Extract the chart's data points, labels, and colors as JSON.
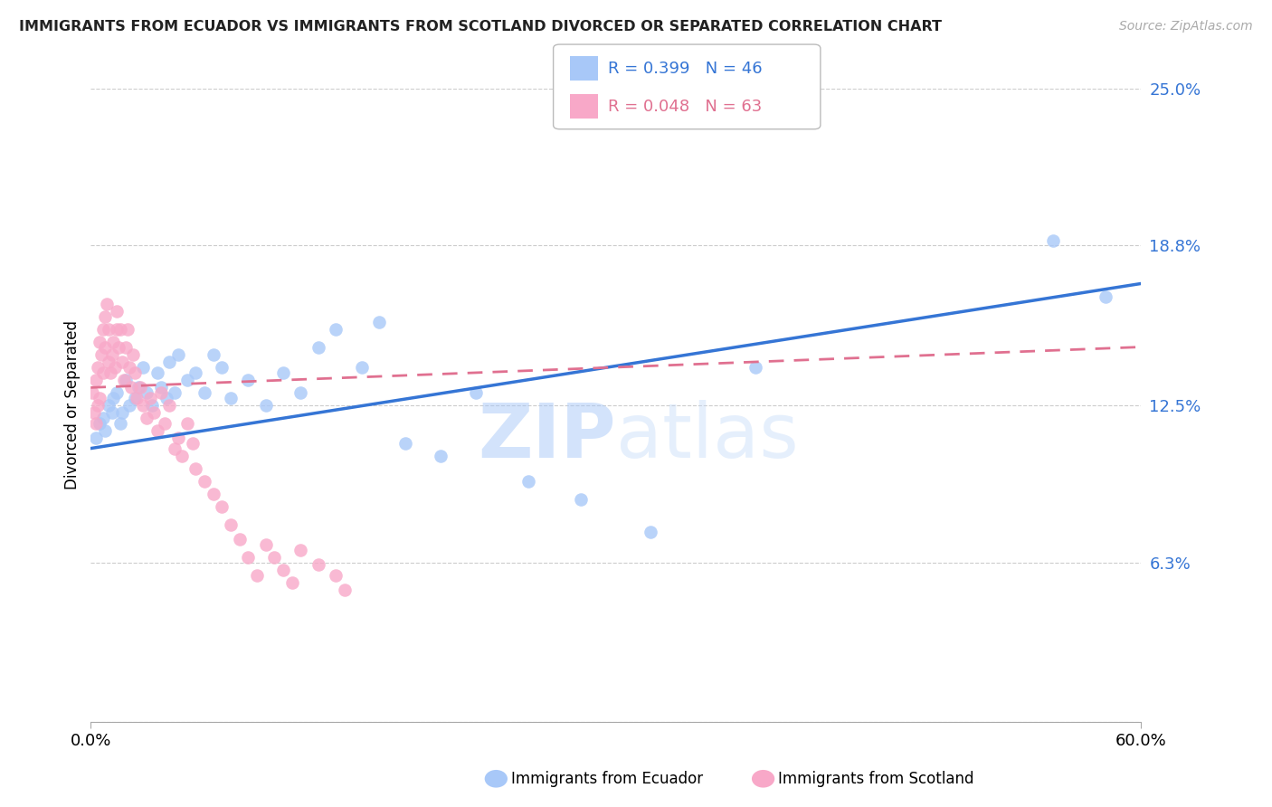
{
  "title": "IMMIGRANTS FROM ECUADOR VS IMMIGRANTS FROM SCOTLAND DIVORCED OR SEPARATED CORRELATION CHART",
  "source": "Source: ZipAtlas.com",
  "ylabel_label": "Divorced or Separated",
  "legend_label1": "Immigrants from Ecuador",
  "legend_label2": "Immigrants from Scotland",
  "r1": 0.399,
  "n1": 46,
  "r2": 0.048,
  "n2": 63,
  "color1": "#a8c8f8",
  "color2": "#f8a8c8",
  "line1_color": "#3575d5",
  "line2_color": "#e07090",
  "watermark_zip": "ZIP",
  "watermark_atlas": "atlas",
  "xmin": 0.0,
  "xmax": 0.6,
  "ymin": 0.0,
  "ymax": 0.25,
  "yticks": [
    0.0,
    0.063,
    0.125,
    0.188,
    0.25
  ],
  "ytick_labels": [
    "",
    "6.3%",
    "12.5%",
    "18.8%",
    "25.0%"
  ],
  "ecuador_x": [
    0.003,
    0.005,
    0.007,
    0.008,
    0.01,
    0.012,
    0.013,
    0.015,
    0.017,
    0.018,
    0.02,
    0.022,
    0.025,
    0.027,
    0.03,
    0.032,
    0.035,
    0.038,
    0.04,
    0.043,
    0.045,
    0.048,
    0.05,
    0.055,
    0.06,
    0.065,
    0.07,
    0.075,
    0.08,
    0.09,
    0.1,
    0.11,
    0.12,
    0.13,
    0.14,
    0.155,
    0.165,
    0.18,
    0.2,
    0.22,
    0.25,
    0.28,
    0.32,
    0.38,
    0.55,
    0.58
  ],
  "ecuador_y": [
    0.112,
    0.118,
    0.12,
    0.115,
    0.125,
    0.122,
    0.128,
    0.13,
    0.118,
    0.122,
    0.135,
    0.125,
    0.128,
    0.132,
    0.14,
    0.13,
    0.125,
    0.138,
    0.132,
    0.128,
    0.142,
    0.13,
    0.145,
    0.135,
    0.138,
    0.13,
    0.145,
    0.14,
    0.128,
    0.135,
    0.125,
    0.138,
    0.13,
    0.148,
    0.155,
    0.14,
    0.158,
    0.11,
    0.105,
    0.13,
    0.095,
    0.088,
    0.075,
    0.14,
    0.19,
    0.168
  ],
  "scotland_x": [
    0.001,
    0.002,
    0.003,
    0.003,
    0.004,
    0.004,
    0.005,
    0.005,
    0.006,
    0.007,
    0.007,
    0.008,
    0.008,
    0.009,
    0.01,
    0.01,
    0.011,
    0.012,
    0.013,
    0.014,
    0.015,
    0.015,
    0.016,
    0.017,
    0.018,
    0.019,
    0.02,
    0.021,
    0.022,
    0.023,
    0.024,
    0.025,
    0.026,
    0.028,
    0.03,
    0.032,
    0.034,
    0.036,
    0.038,
    0.04,
    0.042,
    0.045,
    0.048,
    0.05,
    0.052,
    0.055,
    0.058,
    0.06,
    0.065,
    0.07,
    0.075,
    0.08,
    0.085,
    0.09,
    0.095,
    0.1,
    0.105,
    0.11,
    0.115,
    0.12,
    0.13,
    0.14,
    0.145
  ],
  "scotland_y": [
    0.13,
    0.122,
    0.118,
    0.135,
    0.125,
    0.14,
    0.128,
    0.15,
    0.145,
    0.138,
    0.155,
    0.16,
    0.148,
    0.165,
    0.142,
    0.155,
    0.138,
    0.145,
    0.15,
    0.14,
    0.155,
    0.162,
    0.148,
    0.155,
    0.142,
    0.135,
    0.148,
    0.155,
    0.14,
    0.132,
    0.145,
    0.138,
    0.128,
    0.132,
    0.125,
    0.12,
    0.128,
    0.122,
    0.115,
    0.13,
    0.118,
    0.125,
    0.108,
    0.112,
    0.105,
    0.118,
    0.11,
    0.1,
    0.095,
    0.09,
    0.085,
    0.078,
    0.072,
    0.065,
    0.058,
    0.07,
    0.065,
    0.06,
    0.055,
    0.068,
    0.062,
    0.058,
    0.052
  ],
  "line1_x0": 0.0,
  "line1_y0": 0.108,
  "line1_x1": 0.6,
  "line1_y1": 0.173,
  "line2_x0": 0.0,
  "line2_y0": 0.132,
  "line2_x1": 0.6,
  "line2_y1": 0.148
}
